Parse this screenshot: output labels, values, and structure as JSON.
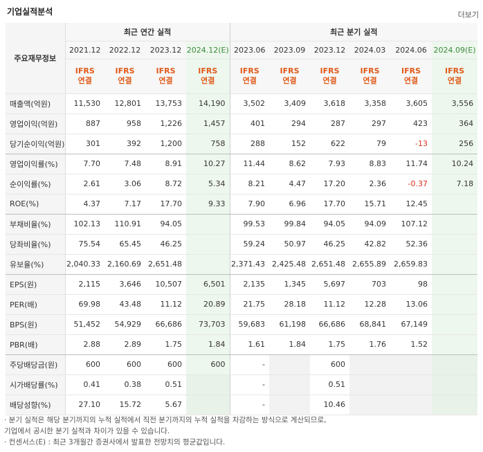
{
  "header": {
    "title": "기업실적분석",
    "more_label": "더보기"
  },
  "table": {
    "corner_label": "주요재무정보",
    "group_annual": "최근 연간 실적",
    "group_quarter": "최근 분기 실적",
    "periods": [
      "2021.12",
      "2022.12",
      "2023.12",
      "2024.12(E)",
      "2023.06",
      "2023.09",
      "2023.12",
      "2024.03",
      "2024.06",
      "2024.09(E)"
    ],
    "ifrs_top": "IFRS",
    "ifrs_bottom": "연결",
    "rows": [
      {
        "label": "매출액(억원)",
        "values": [
          "11,530",
          "12,801",
          "13,753",
          "14,190",
          "3,502",
          "3,409",
          "3,618",
          "3,358",
          "3,605",
          "3,556"
        ]
      },
      {
        "label": "영업이익(억원)",
        "values": [
          "887",
          "958",
          "1,226",
          "1,457",
          "401",
          "294",
          "287",
          "297",
          "423",
          "364"
        ]
      },
      {
        "label": "당기순이익(억원)",
        "values": [
          "301",
          "392",
          "1,200",
          "758",
          "288",
          "152",
          "622",
          "79",
          "-13",
          "256"
        ]
      },
      {
        "label": "영업이익률(%)",
        "values": [
          "7.70",
          "7.48",
          "8.91",
          "10.27",
          "11.44",
          "8.62",
          "7.93",
          "8.83",
          "11.74",
          "10.24"
        ]
      },
      {
        "label": "순이익률(%)",
        "values": [
          "2.61",
          "3.06",
          "8.72",
          "5.34",
          "8.21",
          "4.47",
          "17.20",
          "2.36",
          "-0.37",
          "7.18"
        ]
      },
      {
        "label": "ROE(%)",
        "values": [
          "4.37",
          "7.17",
          "17.70",
          "9.33",
          "7.90",
          "6.96",
          "17.70",
          "15.71",
          "12.45",
          ""
        ]
      },
      {
        "label": "부채비율(%)",
        "values": [
          "102.13",
          "110.91",
          "94.05",
          "",
          "99.53",
          "99.84",
          "94.05",
          "94.09",
          "107.12",
          ""
        ]
      },
      {
        "label": "당좌비율(%)",
        "values": [
          "75.54",
          "65.45",
          "46.25",
          "",
          "59.24",
          "50.97",
          "46.25",
          "42.82",
          "52.36",
          ""
        ]
      },
      {
        "label": "유보율(%)",
        "values": [
          "2,040.33",
          "2,160.69",
          "2,651.48",
          "",
          "2,371.43",
          "2,425.48",
          "2,651.48",
          "2,655.89",
          "2,659.83",
          ""
        ]
      },
      {
        "label": "EPS(원)",
        "values": [
          "2,115",
          "3,646",
          "10,507",
          "6,501",
          "2,135",
          "1,345",
          "5,697",
          "703",
          "98",
          ""
        ]
      },
      {
        "label": "PER(배)",
        "values": [
          "69.98",
          "43.48",
          "11.12",
          "20.89",
          "21.75",
          "28.18",
          "11.12",
          "12.28",
          "13.06",
          ""
        ]
      },
      {
        "label": "BPS(원)",
        "values": [
          "51,452",
          "54,929",
          "66,686",
          "73,703",
          "59,683",
          "61,198",
          "66,686",
          "68,841",
          "67,149",
          ""
        ]
      },
      {
        "label": "PBR(배)",
        "values": [
          "2.88",
          "2.89",
          "1.75",
          "1.84",
          "1.61",
          "1.84",
          "1.75",
          "1.76",
          "1.52",
          ""
        ]
      },
      {
        "label": "주당배당금(원)",
        "values": [
          "600",
          "600",
          "600",
          "600",
          "-",
          "",
          "600",
          "",
          "",
          ""
        ]
      },
      {
        "label": "시가배당률(%)",
        "values": [
          "0.41",
          "0.38",
          "0.51",
          "",
          "-",
          "",
          "0.51",
          "",
          "",
          ""
        ]
      },
      {
        "label": "배당성향(%)",
        "values": [
          "27.10",
          "15.72",
          "5.67",
          "",
          "-",
          "",
          "10.46",
          "",
          "",
          ""
        ]
      }
    ]
  },
  "notes": [
    "· 분기 실적은 해당 분기까지의 누적 실적에서 직전 분기까지의 누적 실적을 차감하는 방식으로 계산되므로,",
    "  기업에서 공시한 분기 실적과 차이가 있을 수 있습니다.",
    "· 컨센서스(E) : 최근 3개월간 증권사에서 발표한 전망치의 평균값입니다."
  ]
}
